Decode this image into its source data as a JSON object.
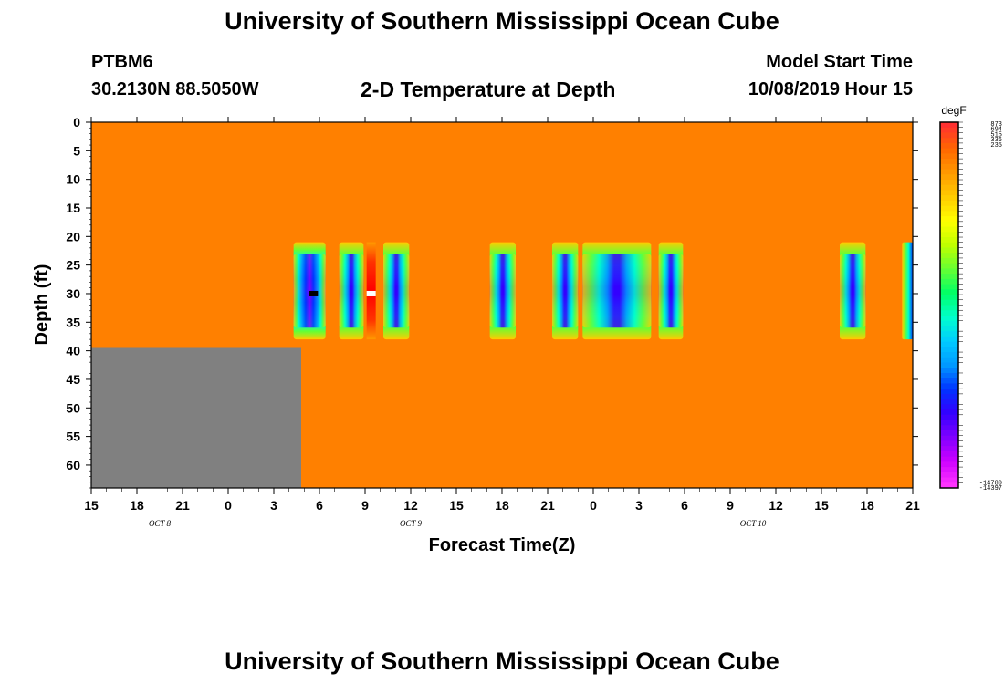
{
  "header": {
    "title": "University of Southern Mississippi Ocean Cube",
    "station": "PTBM6",
    "coords": "30.2130N 88.5050W",
    "plot_title": "2-D Temperature at Depth",
    "model_label": "Model Start Time",
    "model_time": "10/08/2019 Hour 15",
    "footer_title": "University of Southern Mississippi Ocean Cube"
  },
  "colors": {
    "background_field": "#ff8000",
    "no_data": "#808080",
    "colormap": [
      "#ff3030",
      "#ff6600",
      "#ff9900",
      "#ffcc00",
      "#ffff00",
      "#bfff00",
      "#66ff33",
      "#00ff66",
      "#00ffcc",
      "#00ccff",
      "#0099ff",
      "#0033ff",
      "#3300ff",
      "#7f00ff",
      "#cc00ff",
      "#ff33ff"
    ]
  },
  "chart_data": {
    "type": "heatmap",
    "xlabel": "Forecast Time(Z)",
    "ylabel": "Depth (ft)",
    "ylim": [
      0,
      64
    ],
    "y_ticks": [
      0,
      5,
      10,
      15,
      20,
      25,
      30,
      35,
      40,
      45,
      50,
      55,
      60
    ],
    "x_ticks": [
      {
        "label": "15",
        "hour": 0
      },
      {
        "label": "18",
        "hour": 3
      },
      {
        "label": "21",
        "hour": 6
      },
      {
        "label": "0",
        "hour": 9
      },
      {
        "label": "3",
        "hour": 12
      },
      {
        "label": "6",
        "hour": 15
      },
      {
        "label": "9",
        "hour": 18
      },
      {
        "label": "12",
        "hour": 21
      },
      {
        "label": "15",
        "hour": 24
      },
      {
        "label": "18",
        "hour": 27
      },
      {
        "label": "21",
        "hour": 30
      },
      {
        "label": "0",
        "hour": 33
      },
      {
        "label": "3",
        "hour": 36
      },
      {
        "label": "6",
        "hour": 39
      },
      {
        "label": "9",
        "hour": 42
      },
      {
        "label": "12",
        "hour": 45
      },
      {
        "label": "15",
        "hour": 48
      },
      {
        "label": "18",
        "hour": 51
      },
      {
        "label": "21",
        "hour": 54
      }
    ],
    "xlim_hours": [
      0,
      54
    ],
    "date_labels": [
      {
        "label": "OCT 8",
        "hour": 4.5
      },
      {
        "label": "OCT 9",
        "hour": 21
      },
      {
        "label": "OCT 10",
        "hour": 43.5
      }
    ],
    "no_data_region": {
      "hour_start": 0,
      "hour_end": 13.8,
      "depth_start": 39.5,
      "depth_end": 64
    },
    "anomalies": [
      {
        "hour_start": 13.3,
        "hour_end": 15.4,
        "depth_start": 21,
        "depth_end": 38,
        "intensity": 1.0
      },
      {
        "hour_start": 16.3,
        "hour_end": 17.9,
        "depth_start": 21,
        "depth_end": 38,
        "intensity": 0.85
      },
      {
        "hour_start": 19.2,
        "hour_end": 20.9,
        "depth_start": 21,
        "depth_end": 38,
        "intensity": 0.85
      },
      {
        "hour_start": 26.2,
        "hour_end": 27.9,
        "depth_start": 21,
        "depth_end": 38,
        "intensity": 0.85
      },
      {
        "hour_start": 30.3,
        "hour_end": 32.0,
        "depth_start": 21,
        "depth_end": 38,
        "intensity": 0.85
      },
      {
        "hour_start": 32.3,
        "hour_end": 36.8,
        "depth_start": 21,
        "depth_end": 38,
        "intensity": 0.9
      },
      {
        "hour_start": 37.3,
        "hour_end": 38.9,
        "depth_start": 21,
        "depth_end": 38,
        "intensity": 0.85
      },
      {
        "hour_start": 49.2,
        "hour_end": 50.9,
        "depth_start": 21,
        "depth_end": 38,
        "intensity": 0.85
      },
      {
        "hour_start": 53.3,
        "hour_end": 54.0,
        "depth_start": 21,
        "depth_end": 38,
        "intensity": 0.5
      }
    ],
    "warm_stripe": {
      "hour_start": 18.1,
      "hour_end": 18.7,
      "depth_start": 21,
      "depth_end": 38
    },
    "markers": [
      {
        "hour": 14.6,
        "depth": 30,
        "color": "#000000"
      },
      {
        "hour": 18.4,
        "depth": 30,
        "color": "#ffffff"
      }
    ],
    "colorbar": {
      "unit": "degF",
      "levels": 70,
      "top_labels": [
        "873",
        "694",
        "515",
        "336",
        "235"
      ],
      "bottom_labels": [
        "-14780",
        "-14397"
      ]
    }
  }
}
